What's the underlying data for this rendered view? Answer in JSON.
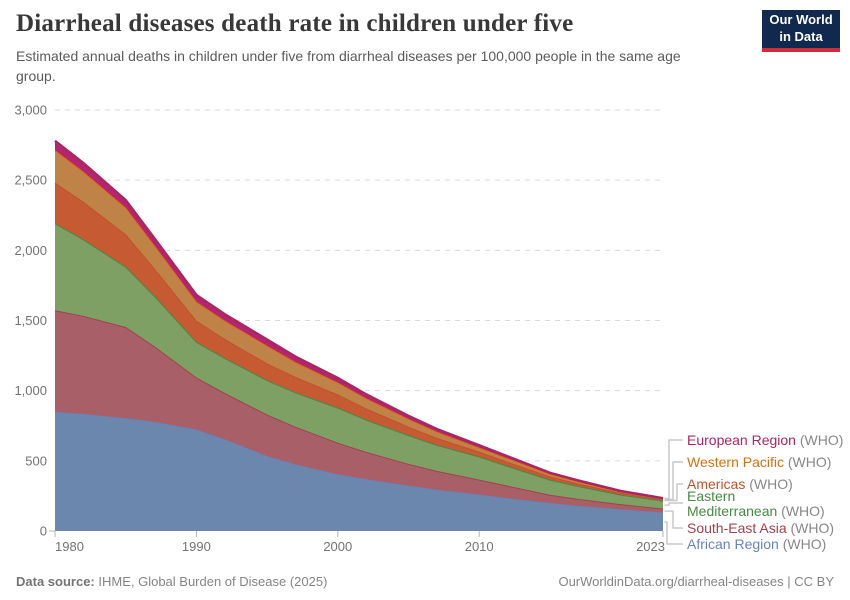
{
  "header": {
    "title": "Diarrheal diseases death rate in children under five",
    "subtitle": "Estimated annual deaths in children under five from diarrheal diseases per 100,000 people in the same age group."
  },
  "logo": {
    "line1": "Our World",
    "line2": "in Data",
    "bg_color": "#12294f",
    "bar_color": "#ce2d39"
  },
  "footer": {
    "left_label": "Data source:",
    "left_text": " IHME, Global Burden of Disease (2025)",
    "right_text": "OurWorldinData.org/diarrheal-diseases | CC BY"
  },
  "chart_data": {
    "type": "area",
    "stacked": true,
    "title": "Diarrheal diseases death rate in children under five",
    "xlabel": "",
    "ylabel": "",
    "x": [
      1980,
      1982,
      1985,
      1987,
      1990,
      1992,
      1995,
      1997,
      2000,
      2002,
      2005,
      2007,
      2010,
      2012,
      2015,
      2017,
      2020,
      2023
    ],
    "series": [
      {
        "name": "African Region",
        "suffix": "(WHO)",
        "color": "#6c87ae",
        "line": "#6784bc",
        "stroke_width": 1,
        "values": [
          845,
          830,
          800,
          775,
          720,
          650,
          530,
          470,
          400,
          365,
          320,
          290,
          256,
          230,
          195,
          175,
          150,
          128
        ]
      },
      {
        "name": "South-East Asia",
        "suffix": "(WHO)",
        "color": "#a85f68",
        "line": "#a2424b",
        "stroke_width": 1,
        "values": [
          725,
          700,
          650,
          540,
          370,
          330,
          296,
          270,
          226,
          195,
          155,
          135,
          107,
          90,
          60,
          50,
          38,
          28
        ]
      },
      {
        "name": "Eastern Mediterranean",
        "suffix": "(WHO)",
        "color": "#7fa065",
        "line": "#468a43",
        "stroke_width": 1,
        "values": [
          620,
          545,
          430,
          360,
          255,
          250,
          245,
          245,
          250,
          230,
          205,
          185,
          164,
          140,
          108,
          92,
          68,
          57
        ]
      },
      {
        "name": "Americas",
        "suffix": "(WHO)",
        "color": "#c55a33",
        "line": "#c4512c",
        "stroke_width": 1,
        "values": [
          290,
          267,
          230,
          195,
          150,
          135,
          120,
          110,
          93,
          80,
          60,
          50,
          35,
          30,
          22,
          18,
          12,
          8
        ]
      },
      {
        "name": "Western Pacific",
        "suffix": "(WHO)",
        "color": "#c08347",
        "line": "#d8710f",
        "stroke_width": 1,
        "values": [
          230,
          215,
          190,
          165,
          135,
          130,
          125,
          105,
          85,
          72,
          55,
          44,
          29,
          25,
          18,
          15,
          10,
          8
        ]
      },
      {
        "name": "European Region",
        "suffix": "(WHO)",
        "color": "#b5256e",
        "line": "#ad2363",
        "stroke_width": 2.5,
        "values": [
          70,
          65,
          58,
          55,
          52,
          50,
          48,
          43,
          36,
          32,
          25,
          23,
          20,
          17,
          12,
          10,
          7,
          5
        ]
      }
    ],
    "y_ticks": [
      {
        "value": 0,
        "label": "0"
      },
      {
        "value": 500,
        "label": "500"
      },
      {
        "value": 1000,
        "label": "1,000"
      },
      {
        "value": 1500,
        "label": "1,500"
      },
      {
        "value": 2000,
        "label": "2,000"
      },
      {
        "value": 2500,
        "label": "2,500"
      },
      {
        "value": 3000,
        "label": "3,000"
      }
    ],
    "x_ticks": [
      {
        "year": 1980,
        "label": "1980",
        "anchor": "start"
      },
      {
        "year": 1990,
        "label": "1990",
        "anchor": "middle"
      },
      {
        "year": 2000,
        "label": "2000",
        "anchor": "middle"
      },
      {
        "year": 2010,
        "label": "2010",
        "anchor": "middle"
      },
      {
        "year": 2023,
        "label": "2023",
        "anchor": "end"
      }
    ],
    "ylim": [
      0,
      3000
    ],
    "grid": "dashed-horizontal",
    "legend_position": "right",
    "layout": {
      "x_left": 55,
      "x_right": 663,
      "y_top": 110,
      "y_bottom": 531,
      "v_max": 3000,
      "grid_color": "#dadada",
      "tick_color": "#b5b5b5",
      "connector_color": "#c9c9c9",
      "legend": [
        {
          "series": "European Region",
          "label": "European Region",
          "top": 433,
          "row_y": 440,
          "elbow": 669
        },
        {
          "series": "Western Pacific",
          "label": "Western Pacific",
          "top": 455,
          "row_y": 462,
          "elbow": 673
        },
        {
          "series": "Americas",
          "label": "Americas",
          "top": 477,
          "row_y": 484,
          "elbow": 677
        },
        {
          "series": "Eastern Mediterranean",
          "label": "Eastern\nMediterranean",
          "top": 489,
          "row_y": 503,
          "elbow": 669
        },
        {
          "series": "South-East Asia",
          "label": "South-East Asia",
          "top": 521,
          "row_y": 528,
          "elbow": 673
        },
        {
          "series": "African Region",
          "label": "African Region",
          "top": 537,
          "row_y": 544,
          "elbow": 667
        }
      ]
    }
  }
}
